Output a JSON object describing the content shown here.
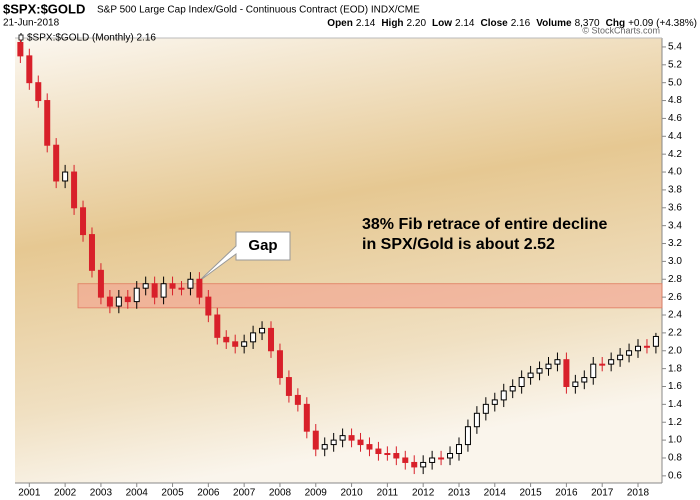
{
  "chart_data": {
    "type": "candlestick",
    "symbol": "$SPX:$GOLD",
    "title": "S&P 500 Large Cap Index/Gold - Continuous Contract (EOD) INDX/CME",
    "date": "21-Jun-2018",
    "stats": [
      {
        "label": "Open",
        "value": "2.14"
      },
      {
        "label": "High",
        "value": "2.20"
      },
      {
        "label": "Low",
        "value": "2.14"
      },
      {
        "label": "Close",
        "value": "2.16"
      },
      {
        "label": "Volume",
        "value": "8,370"
      },
      {
        "label": "Chg",
        "value": "+0.09 (+4.38%)"
      }
    ],
    "credit": "© StockCharts.com",
    "legend": "$SPX:$GOLD (Monthly) 2.16",
    "annotation": [
      "38% Fib retrace of entire decline",
      "in SPX/Gold is about 2.52"
    ],
    "callout": "Gap",
    "band": [
      2.48,
      2.75
    ],
    "up_color": "#000000",
    "down_color": "#d8202a",
    "band_color": "#f4a090",
    "x": [
      2000.75,
      2001,
      2001.25,
      2001.5,
      2001.75,
      2002,
      2002.25,
      2002.5,
      2002.75,
      2003,
      2003.25,
      2003.5,
      2003.75,
      2004,
      2004.25,
      2004.5,
      2004.75,
      2005,
      2005.25,
      2005.5,
      2005.75,
      2006,
      2006.25,
      2006.5,
      2006.75,
      2007,
      2007.25,
      2007.5,
      2007.75,
      2008,
      2008.25,
      2008.5,
      2008.75,
      2009,
      2009.25,
      2009.5,
      2009.75,
      2010,
      2010.25,
      2010.5,
      2010.75,
      2011,
      2011.25,
      2011.5,
      2011.75,
      2012,
      2012.25,
      2012.5,
      2012.75,
      2013,
      2013.25,
      2013.5,
      2013.75,
      2014,
      2014.25,
      2014.5,
      2014.75,
      2015,
      2015.25,
      2015.5,
      2015.75,
      2016,
      2016.25,
      2016.5,
      2016.75,
      2017,
      2017.25,
      2017.5,
      2017.75,
      2018,
      2018.25,
      2018.5
    ],
    "open": [
      5.45,
      5.3,
      5.0,
      4.8,
      4.3,
      3.9,
      4.0,
      3.6,
      3.3,
      2.9,
      2.6,
      2.5,
      2.6,
      2.55,
      2.7,
      2.75,
      2.6,
      2.75,
      2.7,
      2.7,
      2.8,
      2.6,
      2.4,
      2.15,
      2.1,
      2.05,
      2.1,
      2.2,
      2.25,
      2.0,
      1.7,
      1.5,
      1.4,
      1.1,
      0.9,
      0.95,
      1.0,
      1.05,
      1.0,
      0.95,
      0.9,
      0.85,
      0.85,
      0.8,
      0.75,
      0.7,
      0.75,
      0.8,
      0.8,
      0.85,
      0.95,
      1.15,
      1.3,
      1.4,
      1.45,
      1.55,
      1.6,
      1.7,
      1.75,
      1.8,
      1.85,
      1.9,
      1.6,
      1.65,
      1.7,
      1.85,
      1.85,
      1.9,
      1.95,
      2.0,
      2.05,
      2.05
    ],
    "high": [
      5.48,
      5.38,
      5.08,
      4.88,
      4.38,
      4.08,
      4.08,
      3.68,
      3.38,
      2.98,
      2.68,
      2.68,
      2.68,
      2.78,
      2.83,
      2.83,
      2.83,
      2.83,
      2.78,
      2.88,
      2.88,
      2.68,
      2.48,
      2.23,
      2.18,
      2.18,
      2.28,
      2.33,
      2.33,
      2.08,
      1.78,
      1.58,
      1.48,
      1.18,
      1.03,
      1.08,
      1.13,
      1.13,
      1.08,
      1.03,
      0.98,
      0.93,
      0.93,
      0.88,
      0.83,
      0.83,
      0.88,
      0.88,
      0.93,
      1.03,
      1.23,
      1.38,
      1.48,
      1.53,
      1.63,
      1.68,
      1.78,
      1.83,
      1.88,
      1.93,
      1.98,
      1.98,
      1.73,
      1.78,
      1.93,
      1.93,
      1.98,
      2.03,
      2.08,
      2.13,
      2.13,
      2.2
    ],
    "low": [
      5.22,
      4.92,
      4.72,
      4.22,
      3.82,
      3.82,
      3.52,
      3.22,
      2.82,
      2.52,
      2.42,
      2.42,
      2.47,
      2.47,
      2.62,
      2.52,
      2.52,
      2.62,
      2.62,
      2.62,
      2.52,
      2.32,
      2.07,
      2.02,
      1.97,
      1.97,
      2.02,
      2.12,
      1.92,
      1.62,
      1.42,
      1.32,
      1.02,
      0.82,
      0.82,
      0.87,
      0.92,
      0.92,
      0.87,
      0.82,
      0.77,
      0.77,
      0.72,
      0.67,
      0.62,
      0.62,
      0.67,
      0.72,
      0.72,
      0.77,
      0.87,
      1.07,
      1.22,
      1.32,
      1.37,
      1.47,
      1.52,
      1.62,
      1.67,
      1.72,
      1.77,
      1.52,
      1.52,
      1.57,
      1.62,
      1.77,
      1.77,
      1.82,
      1.87,
      1.92,
      1.97,
      1.97
    ],
    "close": [
      5.3,
      5.0,
      4.8,
      4.3,
      3.9,
      4.0,
      3.6,
      3.3,
      2.9,
      2.6,
      2.5,
      2.6,
      2.55,
      2.7,
      2.75,
      2.6,
      2.75,
      2.7,
      2.7,
      2.8,
      2.6,
      2.4,
      2.15,
      2.1,
      2.05,
      2.1,
      2.2,
      2.25,
      2.0,
      1.7,
      1.5,
      1.4,
      1.1,
      0.9,
      0.95,
      1.0,
      1.05,
      1.0,
      0.95,
      0.9,
      0.85,
      0.85,
      0.8,
      0.75,
      0.7,
      0.75,
      0.8,
      0.8,
      0.85,
      0.95,
      1.15,
      1.3,
      1.4,
      1.45,
      1.55,
      1.6,
      1.7,
      1.75,
      1.8,
      1.85,
      1.9,
      1.6,
      1.65,
      1.7,
      1.85,
      1.85,
      1.9,
      1.95,
      2.0,
      2.05,
      2.05,
      2.16
    ],
    "xlim": [
      2000.6,
      2018.67
    ],
    "xticks": [
      2001,
      2002,
      2003,
      2004,
      2005,
      2006,
      2007,
      2008,
      2009,
      2010,
      2011,
      2012,
      2013,
      2014,
      2015,
      2016,
      2017,
      2018
    ],
    "ylim": [
      0.52,
      5.5
    ],
    "yticks": [
      0.6,
      0.8,
      {
        "value": 1.0,
        "label": "1.0"
      },
      1.2,
      1.4,
      1.6,
      1.8,
      {
        "value": 2.0,
        "label": "2.0"
      },
      2.2,
      2.4,
      2.6,
      2.8,
      {
        "value": 3.0,
        "label": "3.0"
      },
      3.2,
      3.4,
      3.6,
      3.8,
      {
        "value": 4.0,
        "label": "4.0"
      },
      4.2,
      4.4,
      4.6,
      4.8,
      {
        "value": 5.0,
        "label": "5.0"
      },
      5.2,
      5.4
    ]
  }
}
